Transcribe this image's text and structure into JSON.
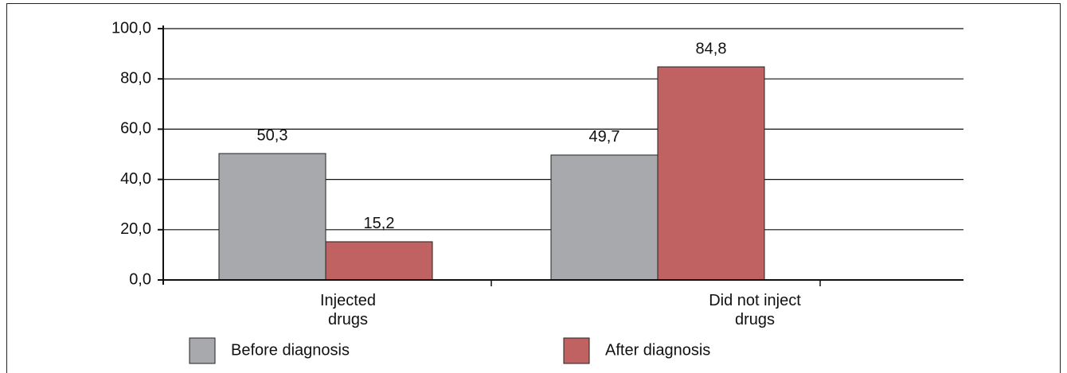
{
  "chart_data": {
    "type": "bar",
    "categories": [
      "Injected drugs",
      "Did not inject drugs"
    ],
    "series": [
      {
        "name": "Before diagnosis",
        "color": "#a7a9ac",
        "values": [
          50.3,
          49.7
        ],
        "value_labels": [
          "50,3",
          "49,7"
        ]
      },
      {
        "name": "After diagnosis",
        "color": "#c06162",
        "values": [
          15.2,
          84.8
        ],
        "value_labels": [
          "15,2",
          "84,8"
        ]
      }
    ],
    "ylim": [
      0,
      100
    ],
    "yticks": [
      {
        "value": 0,
        "label": "0,0"
      },
      {
        "value": 20,
        "label": "20,0"
      },
      {
        "value": 40,
        "label": "40,0"
      },
      {
        "value": 60,
        "label": "60,0"
      },
      {
        "value": 80,
        "label": "80,0"
      },
      {
        "value": 100,
        "label": "100,0"
      }
    ],
    "grid": true,
    "legend": "bottom"
  }
}
